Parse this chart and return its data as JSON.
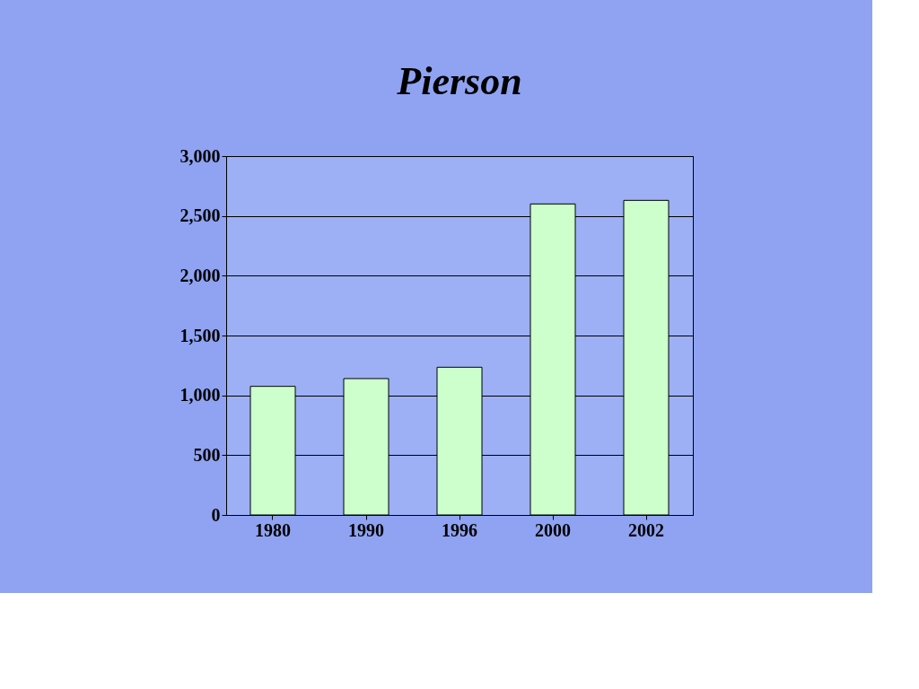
{
  "chart_data": {
    "type": "bar",
    "title": "Pierson",
    "categories": [
      "1980",
      "1990",
      "1996",
      "2000",
      "2002"
    ],
    "values": [
      1075,
      1140,
      1235,
      2600,
      2630
    ],
    "color": "#ccffcc",
    "ylim": [
      0,
      3000
    ],
    "yticks": [
      {
        "value": 0,
        "label": "0"
      },
      {
        "value": 500,
        "label": "500"
      },
      {
        "value": 1000,
        "label": "1,000"
      },
      {
        "value": 1500,
        "label": "1,500"
      },
      {
        "value": 2000,
        "label": "2,000"
      },
      {
        "value": 2500,
        "label": "2,500"
      },
      {
        "value": 3000,
        "label": "3,000"
      }
    ],
    "grid": "y"
  }
}
